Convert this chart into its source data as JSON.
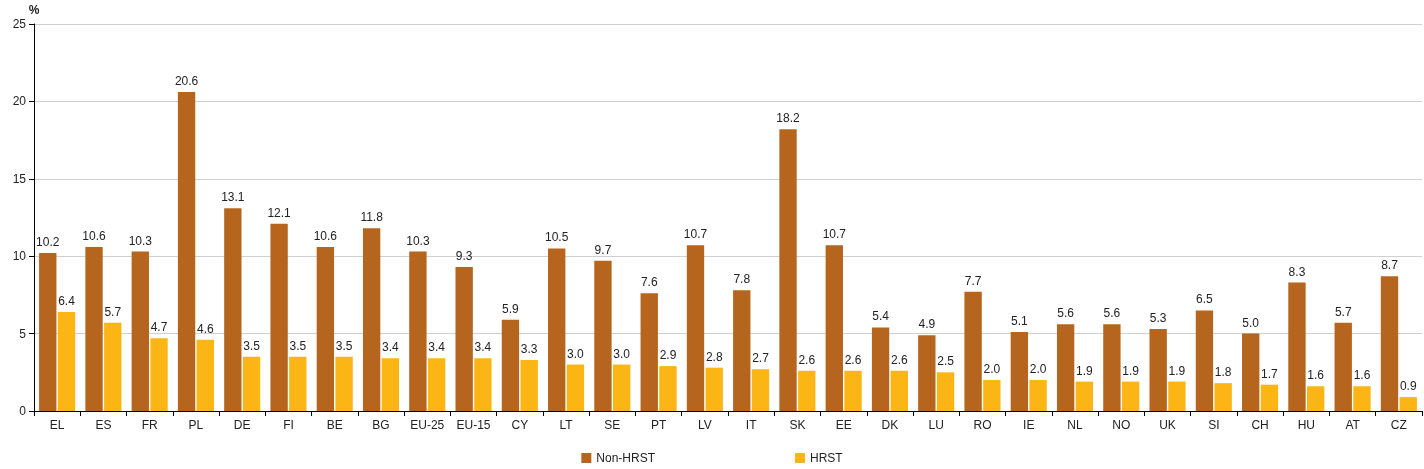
{
  "chart_data": {
    "type": "bar",
    "ylabel": "%",
    "categories": [
      "EL",
      "ES",
      "FR",
      "PL",
      "DE",
      "FI",
      "BE",
      "BG",
      "EU-25",
      "EU-15",
      "CY",
      "LT",
      "SE",
      "PT",
      "LV",
      "IT",
      "SK",
      "EE",
      "DK",
      "LU",
      "RO",
      "IE",
      "NL",
      "NO",
      "UK",
      "SI",
      "CH",
      "HU",
      "AT",
      "CZ"
    ],
    "series": [
      {
        "name": "Non-HRST",
        "color": "#b5651d",
        "values": [
          10.2,
          10.6,
          10.3,
          20.6,
          13.1,
          12.1,
          10.6,
          11.8,
          10.3,
          9.3,
          5.9,
          10.5,
          9.7,
          7.6,
          10.7,
          7.8,
          18.2,
          10.7,
          5.4,
          4.9,
          7.7,
          5.1,
          5.6,
          5.6,
          5.3,
          6.5,
          5.0,
          8.3,
          5.7,
          8.7
        ],
        "value_labels": [
          "10.2",
          "10.6",
          "10.3",
          "20.6",
          "13.1",
          "12.1",
          "10.6",
          "11.8",
          "10.3",
          "9.3",
          "5.9",
          "10.5",
          "9.7",
          "7.6",
          "10.7",
          "7.8",
          "18.2",
          "10.7",
          "5.4",
          "4.9",
          "7.7",
          "5.1",
          "5.6",
          "5.6",
          "5.3",
          "6.5",
          "5.0",
          "8.3",
          "5.7",
          "8.7"
        ]
      },
      {
        "name": "HRST",
        "color": "#fbb616",
        "values": [
          6.4,
          5.7,
          4.7,
          4.6,
          3.5,
          3.5,
          3.5,
          3.4,
          3.4,
          3.4,
          3.3,
          3.0,
          3.0,
          2.9,
          2.8,
          2.7,
          2.6,
          2.6,
          2.6,
          2.5,
          2.0,
          2.0,
          1.9,
          1.9,
          1.9,
          1.8,
          1.7,
          1.6,
          1.6,
          0.9
        ],
        "value_labels": [
          "6.4",
          "5.7",
          "4.7",
          "4.6",
          "3.5",
          "3.5",
          "3.5",
          "3.4",
          "3.4",
          "3.4",
          "3.3",
          "3.0",
          "3.0",
          "2.9",
          "2.8",
          "2.7",
          "2.6",
          "2.6",
          "2.6",
          "2.5",
          "2.0",
          "2.0",
          "1.9",
          "1.9",
          "1.9",
          "1.8",
          "1.7",
          "1.6",
          "1.6",
          "0.9"
        ]
      }
    ],
    "ylim": [
      0,
      25
    ],
    "yticks": [
      0,
      5,
      10,
      15,
      20,
      25
    ],
    "grid": "y",
    "legend": "bottom"
  }
}
